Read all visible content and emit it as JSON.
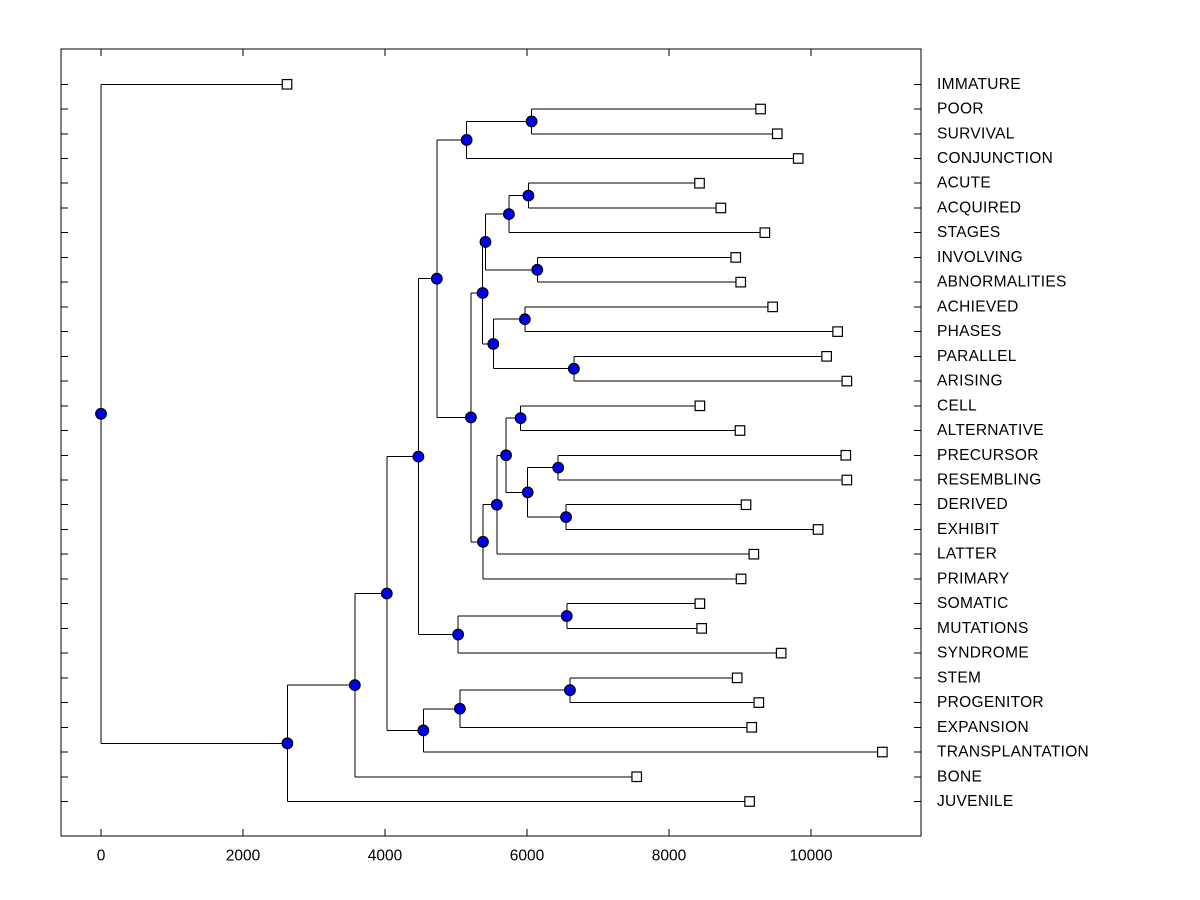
{
  "figure": {
    "kind": "phylogenetic-tree-dendrogram",
    "background": "#ffffff"
  },
  "colors": {
    "branch_line": "#000000",
    "box_line": "#000000",
    "internal_node_fill": "#0000ee",
    "internal_node_stroke": "#000000",
    "leaf_marker_fill": "#ffffff",
    "leaf_marker_stroke": "#000000",
    "text": "#000000"
  },
  "chart_data": {
    "type": "dendrogram",
    "orientation": "root-left-leaves-right",
    "grid": false,
    "legend": false,
    "x_axis": {
      "ticks": [
        0,
        2000,
        4000,
        6000,
        8000,
        10000
      ],
      "tick_labels": [
        "0",
        "2000",
        "4000",
        "6000",
        "8000",
        "10000"
      ],
      "xlim": [
        -560,
        11550
      ]
    },
    "leaf_order": [
      "IMMATURE",
      "POOR",
      "SURVIVAL",
      "CONJUNCTION",
      "ACUTE",
      "ACQUIRED",
      "STAGES",
      "INVOLVING",
      "ABNORMALITIES",
      "ACHIEVED",
      "PHASES",
      "PARALLEL",
      "ARISING",
      "CELL",
      "ALTERNATIVE",
      "PRECURSOR",
      "RESEMBLING",
      "DERIVED",
      "EXHIBIT",
      "LATTER",
      "PRIMARY",
      "SOMATIC",
      "MUTATIONS",
      "SYNDROME",
      "STEM",
      "PROGENITOR",
      "EXPANSION",
      "TRANSPLANTATION",
      "BONE",
      "JUVENILE"
    ],
    "leaf_tip_values": [
      2620,
      9290,
      9525,
      9820,
      8430,
      8730,
      9350,
      8940,
      9010,
      9460,
      10375,
      10220,
      10505,
      8435,
      9000,
      10490,
      10505,
      9085,
      10100,
      9195,
      9015,
      8435,
      8460,
      9580,
      8960,
      9265,
      9165,
      11005,
      7545,
      9135
    ],
    "tree": {
      "v": 0,
      "children": [
        {
          "label": "IMMATURE",
          "v": 2620
        },
        {
          "v": 2625,
          "children": [
            {
              "v": 3575,
              "children": [
                {
                  "v": 4025,
                  "children": [
                    {
                      "v": 4470,
                      "children": [
                        {
                          "v": 4730,
                          "children": [
                            {
                              "v": 5150,
                              "children": [
                                {
                                  "v": 6065,
                                  "children": [
                                    {
                                      "label": "POOR",
                                      "v": 9290
                                    },
                                    {
                                      "label": "SURVIVAL",
                                      "v": 9525
                                    }
                                  ]
                                },
                                {
                                  "label": "CONJUNCTION",
                                  "v": 9820
                                }
                              ]
                            },
                            {
                              "v": 5210,
                              "children": [
                                {
                                  "v": 5375,
                                  "children": [
                                    {
                                      "v": 5415,
                                      "children": [
                                        {
                                          "v": 5745,
                                          "children": [
                                            {
                                              "v": 6020,
                                              "children": [
                                                {
                                                  "label": "ACUTE",
                                                  "v": 8430
                                                },
                                                {
                                                  "label": "ACQUIRED",
                                                  "v": 8730
                                                }
                                              ]
                                            },
                                            {
                                              "label": "STAGES",
                                              "v": 9350
                                            }
                                          ]
                                        },
                                        {
                                          "v": 6145,
                                          "children": [
                                            {
                                              "label": "INVOLVING",
                                              "v": 8940
                                            },
                                            {
                                              "label": "ABNORMALITIES",
                                              "v": 9010
                                            }
                                          ]
                                        }
                                      ]
                                    },
                                    {
                                      "v": 5525,
                                      "children": [
                                        {
                                          "v": 5970,
                                          "children": [
                                            {
                                              "label": "ACHIEVED",
                                              "v": 9460
                                            },
                                            {
                                              "label": "PHASES",
                                              "v": 10375
                                            }
                                          ]
                                        },
                                        {
                                          "v": 6660,
                                          "children": [
                                            {
                                              "label": "PARALLEL",
                                              "v": 10220
                                            },
                                            {
                                              "label": "ARISING",
                                              "v": 10505
                                            }
                                          ]
                                        }
                                      ]
                                    }
                                  ]
                                },
                                {
                                  "v": 5380,
                                  "children": [
                                    {
                                      "v": 5575,
                                      "children": [
                                        {
                                          "v": 5705,
                                          "children": [
                                            {
                                              "v": 5910,
                                              "children": [
                                                {
                                                  "label": "CELL",
                                                  "v": 8435
                                                },
                                                {
                                                  "label": "ALTERNATIVE",
                                                  "v": 9000
                                                }
                                              ]
                                            },
                                            {
                                              "v": 6010,
                                              "children": [
                                                {
                                                  "v": 6440,
                                                  "children": [
                                                    {
                                                      "label": "PRECURSOR",
                                                      "v": 10490
                                                    },
                                                    {
                                                      "label": "RESEMBLING",
                                                      "v": 10505
                                                    }
                                                  ]
                                                },
                                                {
                                                  "v": 6550,
                                                  "children": [
                                                    {
                                                      "label": "DERIVED",
                                                      "v": 9085
                                                    },
                                                    {
                                                      "label": "EXHIBIT",
                                                      "v": 10100
                                                    }
                                                  ]
                                                }
                                              ]
                                            }
                                          ]
                                        },
                                        {
                                          "label": "LATTER",
                                          "v": 9195
                                        }
                                      ]
                                    },
                                    {
                                      "label": "PRIMARY",
                                      "v": 9015
                                    }
                                  ]
                                }
                              ]
                            }
                          ]
                        },
                        {
                          "v": 5030,
                          "children": [
                            {
                              "v": 6560,
                              "children": [
                                {
                                  "label": "SOMATIC",
                                  "v": 8435
                                },
                                {
                                  "label": "MUTATIONS",
                                  "v": 8460
                                }
                              ]
                            },
                            {
                              "label": "SYNDROME",
                              "v": 9580
                            }
                          ]
                        }
                      ]
                    },
                    {
                      "v": 4540,
                      "children": [
                        {
                          "v": 5055,
                          "children": [
                            {
                              "v": 6605,
                              "children": [
                                {
                                  "label": "STEM",
                                  "v": 8960
                                },
                                {
                                  "label": "PROGENITOR",
                                  "v": 9265
                                }
                              ]
                            },
                            {
                              "label": "EXPANSION",
                              "v": 9165
                            }
                          ]
                        },
                        {
                          "label": "TRANSPLANTATION",
                          "v": 11005
                        }
                      ]
                    }
                  ]
                },
                {
                  "label": "BONE",
                  "v": 7545
                }
              ]
            },
            {
              "label": "JUVENILE",
              "v": 9135
            }
          ]
        }
      ]
    }
  }
}
